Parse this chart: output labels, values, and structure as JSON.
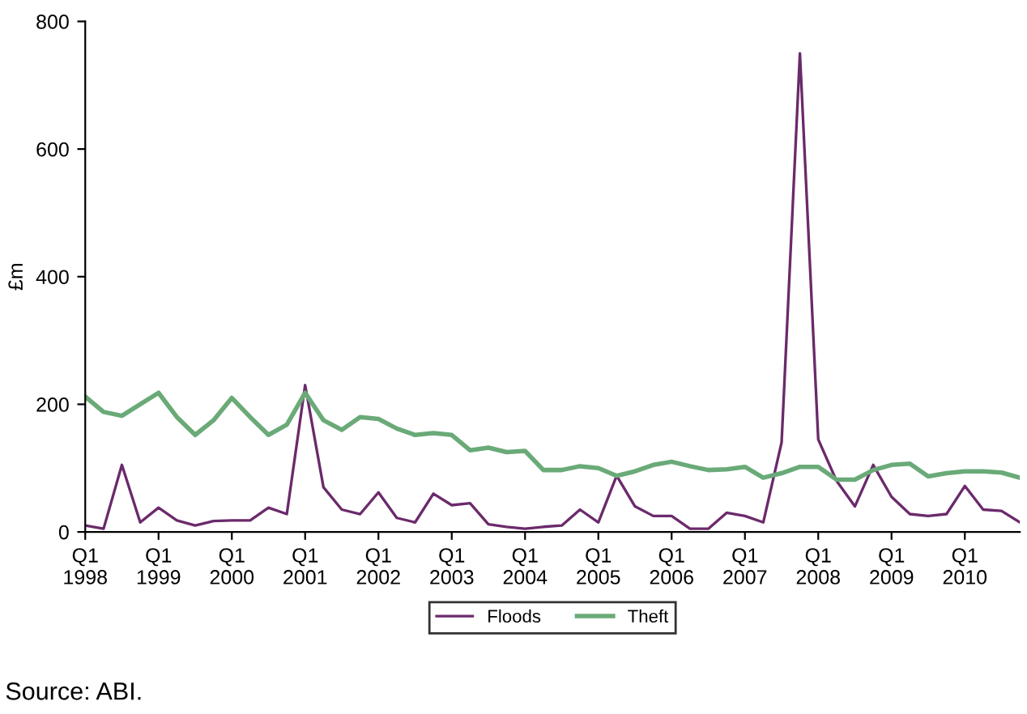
{
  "chart_data": {
    "type": "line",
    "ylabel": "£m",
    "categories": [
      "Q1\n1998",
      null,
      null,
      null,
      "Q1\n1999",
      null,
      null,
      null,
      "Q1\n2000",
      null,
      null,
      null,
      "Q1\n2001",
      null,
      null,
      null,
      "Q1\n2002",
      null,
      null,
      null,
      "Q1\n2003",
      null,
      null,
      null,
      "Q1\n2004",
      null,
      null,
      null,
      "Q1\n2005",
      null,
      null,
      null,
      "Q1\n2006",
      null,
      null,
      null,
      "Q1\n2007",
      null,
      null,
      null,
      "Q1\n2008",
      null,
      null,
      null,
      "Q1\n2009",
      null,
      null,
      null,
      "Q1\n2010",
      null,
      null,
      null
    ],
    "series": [
      {
        "name": "Floods",
        "color": "#6b2a6b",
        "values": [
          10,
          5,
          105,
          15,
          38,
          18,
          10,
          17,
          18,
          18,
          38,
          28,
          230,
          70,
          35,
          28,
          62,
          22,
          15,
          60,
          42,
          45,
          12,
          8,
          5,
          8,
          10,
          35,
          15,
          88,
          40,
          25,
          25,
          5,
          5,
          30,
          25,
          15,
          140,
          750,
          145,
          80,
          40,
          105,
          55,
          28,
          25,
          28,
          72,
          35,
          33,
          15
        ]
      },
      {
        "name": "Theft",
        "color": "#6aaa78",
        "values": [
          212,
          188,
          182,
          200,
          218,
          180,
          152,
          175,
          210,
          180,
          152,
          168,
          218,
          175,
          160,
          180,
          177,
          162,
          152,
          155,
          152,
          128,
          132,
          125,
          127,
          97,
          97,
          103,
          100,
          88,
          95,
          105,
          110,
          103,
          97,
          98,
          102,
          85,
          92,
          102,
          102,
          82,
          82,
          97,
          105,
          107,
          87,
          92,
          95,
          95,
          93,
          85
        ]
      }
    ],
    "ylim": [
      0,
      800
    ],
    "yticks": [
      0,
      200,
      400,
      600,
      800
    ],
    "grid": false,
    "legend": "bottom",
    "marker": "none",
    "line_style": "solid",
    "annotations": [
      "Source: ABI."
    ]
  }
}
